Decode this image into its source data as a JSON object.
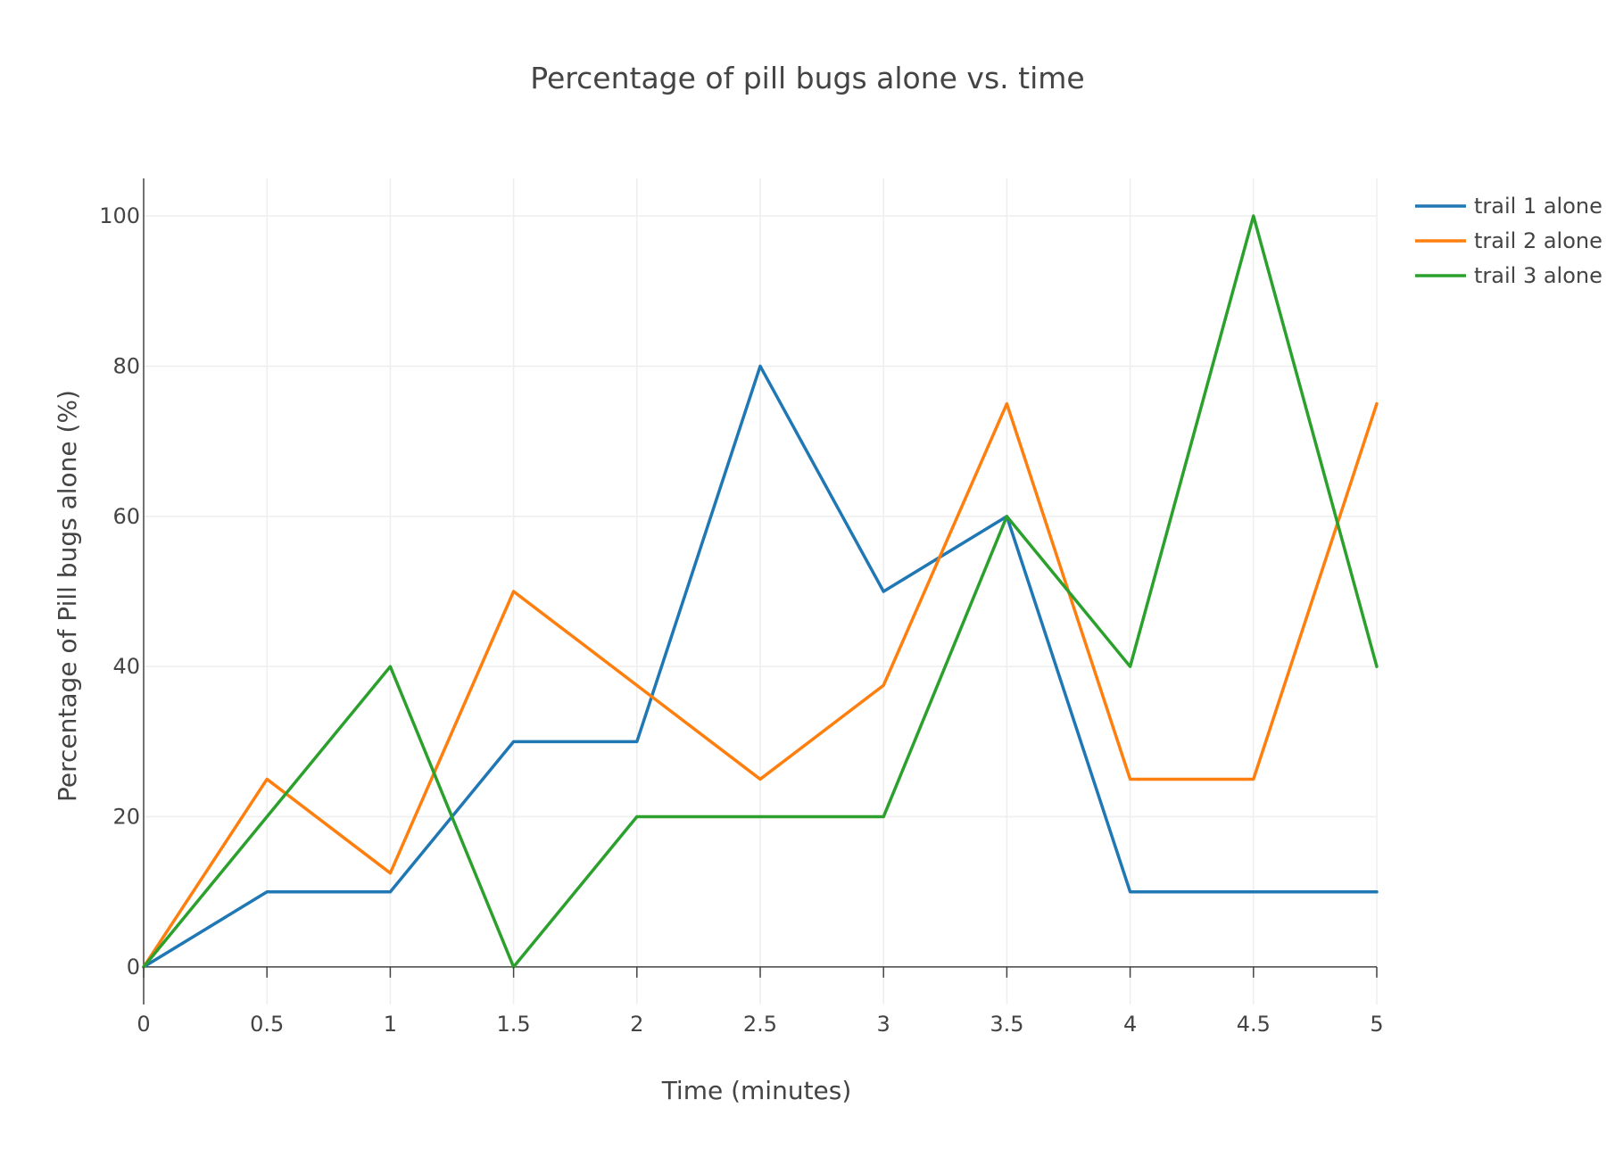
{
  "chart_data": {
    "type": "line",
    "title": "Percentage of pill bugs alone vs. time",
    "xlabel": "Time (minutes)",
    "ylabel": "Percentage of Pill bugs alone (%)",
    "x": [
      0,
      0.5,
      1,
      1.5,
      2,
      2.5,
      3,
      3.5,
      4,
      4.5,
      5
    ],
    "x_ticks": [
      0,
      0.5,
      1,
      1.5,
      2,
      2.5,
      3,
      3.5,
      4,
      4.5,
      5
    ],
    "x_tick_labels": [
      "0",
      "0.5",
      "1",
      "1.5",
      "2",
      "2.5",
      "3",
      "3.5",
      "4",
      "4.5",
      "5"
    ],
    "y_ticks": [
      0,
      20,
      40,
      60,
      80,
      100
    ],
    "y_tick_labels": [
      "0",
      "20",
      "40",
      "60",
      "80",
      "100"
    ],
    "xlim": [
      0,
      5
    ],
    "ylim": [
      -5,
      105
    ],
    "grid": true,
    "legend_position": "top-right",
    "series": [
      {
        "name": "trail 1 alone",
        "color": "#1f77b4",
        "values": [
          0,
          10,
          10,
          30,
          30,
          80,
          50,
          60,
          10,
          10,
          10
        ]
      },
      {
        "name": "trail 2 alone",
        "color": "#ff7f0e",
        "values": [
          0,
          25,
          12.5,
          50,
          37.5,
          25,
          37.5,
          75,
          25,
          25,
          75
        ]
      },
      {
        "name": "trail 3 alone",
        "color": "#2ca02c",
        "values": [
          0,
          20,
          40,
          0,
          20,
          20,
          20,
          60,
          40,
          100,
          40
        ]
      }
    ]
  }
}
